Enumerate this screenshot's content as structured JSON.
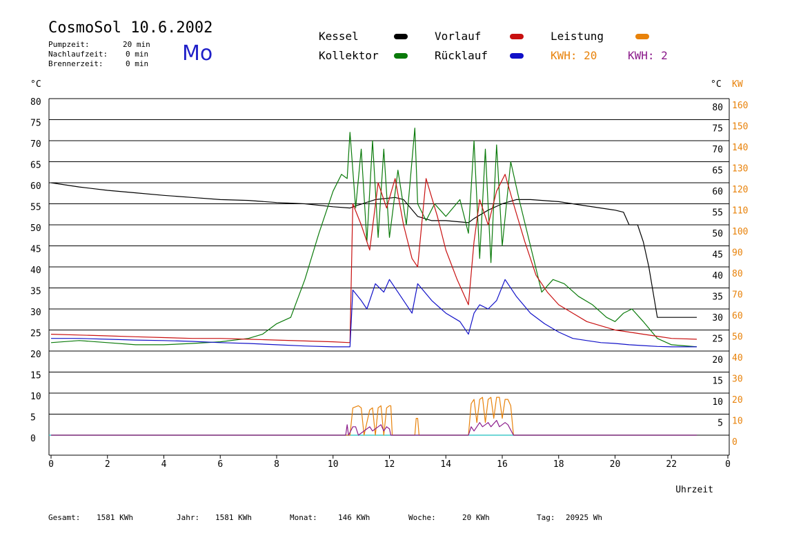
{
  "header": {
    "title": "CosmoSol 10.6.2002",
    "day": "Mo",
    "params": [
      {
        "label": "Pumpzeit:",
        "value": "20 min"
      },
      {
        "label": "Nachlaufzeit:",
        "value": "0 min"
      },
      {
        "label": "Brennerzeit:",
        "value": "0 min"
      }
    ]
  },
  "legend": {
    "kessel": "Kessel",
    "vorlauf": "Vorlauf",
    "leistung": "Leistung",
    "kollektor": "Kollektor",
    "ruecklauf": "Rücklauf",
    "kwh1": "KWH: 20",
    "kwh2": "KWH: 2"
  },
  "colors": {
    "kessel": "#000000",
    "vorlauf": "#c81010",
    "leistung": "#e8820a",
    "kollektor": "#0a7a0a",
    "ruecklauf": "#1010c8",
    "kwh1": "#e8820a",
    "kwh2": "#8a1a8a",
    "baseline": "#40c8c8"
  },
  "footer": {
    "gesamt_label": "Gesamt:",
    "gesamt_value": "1581 KWh",
    "jahr_label": "Jahr:",
    "jahr_value": "1581 KWh",
    "monat_label": "Monat:",
    "monat_value": "146 KWh",
    "woche_label": "Woche:",
    "woche_value": "20 KWh",
    "tag_label": "Tag:",
    "tag_value": "20925 Wh"
  },
  "chart_data": {
    "type": "line",
    "title": "CosmoSol 10.6.2002",
    "xlabel": "Uhrzeit",
    "ylabel_left": "°C",
    "ylabel_right": "°C",
    "ylabel_right2": "KW",
    "xlim": [
      0,
      24
    ],
    "ylim": [
      0,
      80
    ],
    "ylim_kw": [
      0,
      160
    ],
    "x_ticks": [
      "0",
      "2",
      "4",
      "6",
      "8",
      "10",
      "12",
      "14",
      "16",
      "18",
      "20",
      "22",
      "0"
    ],
    "y_ticks_left": [
      "80",
      "75",
      "70",
      "65",
      "60",
      "55",
      "50",
      "45",
      "40",
      "35",
      "30",
      "25",
      "20",
      "15",
      "10",
      "5",
      "0"
    ],
    "y_ticks_right": [
      "80",
      "75",
      "70",
      "65",
      "60",
      "55",
      "50",
      "45",
      "40",
      "35",
      "30",
      "25",
      "20",
      "15",
      "10",
      "5"
    ],
    "y_ticks_kw": [
      "160",
      "150",
      "140",
      "130",
      "120",
      "110",
      "100",
      "90",
      "80",
      "70",
      "60",
      "50",
      "40",
      "30",
      "20",
      "10",
      "0"
    ],
    "grid": true,
    "series": [
      {
        "name": "Kessel",
        "key": "kessel",
        "x": [
          0,
          1,
          2,
          3,
          4,
          5,
          6,
          7,
          8,
          9,
          10,
          10.6,
          10.8,
          11.5,
          12.2,
          12.5,
          13,
          13.5,
          14,
          14.8,
          15,
          15.5,
          16,
          16.5,
          17,
          18,
          19,
          20,
          20.3,
          20.5,
          20.8,
          21,
          21.2,
          21.5,
          22,
          22.9
        ],
        "y": [
          60,
          59,
          58.2,
          57.6,
          57,
          56.5,
          56,
          55.8,
          55.3,
          55,
          54.3,
          54,
          54.5,
          56,
          56.5,
          56,
          52,
          51,
          51,
          50.5,
          51.5,
          53.5,
          55,
          56,
          56,
          55.5,
          54.5,
          53.5,
          53,
          50,
          50,
          46,
          40,
          28,
          28,
          28
        ]
      },
      {
        "name": "Kollektor",
        "key": "kollektor",
        "x": [
          0,
          1,
          2,
          3,
          4,
          5,
          6,
          7,
          7.5,
          8,
          8.5,
          9,
          9.5,
          10,
          10.3,
          10.5,
          10.6,
          10.8,
          11,
          11.2,
          11.4,
          11.6,
          11.8,
          12,
          12.3,
          12.6,
          12.9,
          13,
          13.3,
          13.6,
          14,
          14.5,
          14.8,
          15,
          15.2,
          15.4,
          15.6,
          15.8,
          16,
          16.3,
          16.6,
          17,
          17.4,
          17.8,
          18.2,
          18.7,
          19.2,
          19.7,
          20,
          20.3,
          20.6,
          21,
          21.5,
          22,
          22.9
        ],
        "y": [
          22,
          22.5,
          22,
          21.5,
          21.5,
          21.8,
          22.2,
          23,
          24,
          26.5,
          28,
          37,
          48,
          58,
          62,
          61,
          72,
          54,
          68,
          46,
          70,
          47,
          68,
          47,
          63,
          50,
          73,
          55,
          51,
          55,
          52,
          56,
          48,
          70,
          42,
          68,
          41,
          69,
          45,
          65,
          56,
          45,
          34,
          37,
          36,
          33,
          31,
          28,
          27,
          29,
          30,
          27,
          23,
          21.5,
          21
        ]
      },
      {
        "name": "Vorlauf",
        "key": "vorlauf",
        "x": [
          0,
          1,
          2,
          3,
          4,
          5,
          6,
          7,
          8,
          9,
          10,
          10.6,
          10.7,
          11,
          11.3,
          11.6,
          11.9,
          12.2,
          12.5,
          12.8,
          13,
          13.3,
          13.7,
          14,
          14.4,
          14.8,
          15,
          15.2,
          15.5,
          15.8,
          16.1,
          16.4,
          16.8,
          17.2,
          17.6,
          18,
          18.5,
          19,
          19.5,
          20,
          20.5,
          21,
          21.5,
          22,
          22.9
        ],
        "y": [
          24,
          23.8,
          23.6,
          23.4,
          23.2,
          23,
          23,
          22.8,
          22.6,
          22.4,
          22.2,
          22,
          55,
          50,
          44,
          60,
          54,
          61,
          50,
          42,
          40,
          61,
          52,
          44,
          37,
          31,
          46,
          56,
          50,
          58,
          62,
          55,
          46,
          38,
          34,
          31,
          29,
          27,
          26,
          25,
          24.5,
          24,
          23.5,
          23,
          22.8
        ]
      },
      {
        "name": "Rücklauf",
        "key": "ruecklauf",
        "x": [
          0,
          1,
          2,
          3,
          4,
          5,
          6,
          7,
          8,
          9,
          10,
          10.6,
          10.7,
          11,
          11.2,
          11.5,
          11.8,
          12,
          12.4,
          12.8,
          13,
          13.5,
          14,
          14.5,
          14.8,
          15,
          15.2,
          15.5,
          15.8,
          16.1,
          16.5,
          17,
          17.5,
          18,
          18.5,
          19,
          19.5,
          20,
          20.5,
          21,
          21.5,
          22,
          22.9
        ],
        "y": [
          23,
          23,
          22.8,
          22.6,
          22.5,
          22.3,
          22,
          21.8,
          21.5,
          21.2,
          21,
          21,
          34.5,
          32,
          30,
          36,
          34,
          37,
          33,
          29,
          36,
          32,
          29,
          27,
          24,
          29,
          31,
          30,
          32,
          37,
          33,
          29,
          26.5,
          24.5,
          23,
          22.5,
          22,
          21.8,
          21.5,
          21.3,
          21.1,
          21,
          21
        ]
      },
      {
        "name": "Leistung",
        "key": "leistung",
        "x": [
          0,
          10.6,
          10.7,
          10.9,
          11,
          11.1,
          11.3,
          11.4,
          11.5,
          11.6,
          11.7,
          11.8,
          11.9,
          12,
          12.05,
          12.1,
          12.9,
          12.95,
          13,
          13.05,
          14.8,
          14.9,
          15,
          15.1,
          15.2,
          15.3,
          15.4,
          15.5,
          15.6,
          15.7,
          15.8,
          15.9,
          16,
          16.1,
          16.2,
          16.3,
          16.4,
          22.9
        ],
        "y": [
          0,
          0,
          13,
          14,
          13,
          0,
          12,
          13,
          0,
          13,
          14,
          0,
          13,
          14,
          14,
          0,
          0,
          8,
          8,
          0,
          0,
          15,
          17,
          6,
          17,
          18,
          6,
          17,
          18,
          8,
          18,
          18,
          8,
          17,
          17,
          14,
          0,
          0
        ]
      },
      {
        "name": "KWH",
        "key": "kwh2",
        "x": [
          0,
          10.45,
          10.5,
          10.55,
          10.7,
          10.8,
          10.9,
          11.2,
          11.3,
          11.4,
          11.6,
          11.7,
          11.8,
          11.9,
          12.0,
          12.05,
          14.8,
          14.9,
          15.0,
          15.2,
          15.3,
          15.5,
          15.6,
          15.8,
          15.9,
          16.1,
          16.2,
          16.4,
          22.9
        ],
        "y": [
          0,
          0,
          2.5,
          0,
          2,
          2,
          0,
          1.5,
          2,
          1,
          2,
          2.5,
          1,
          2,
          1.5,
          0,
          0,
          2,
          1,
          3,
          2,
          3,
          2,
          3.5,
          2,
          3,
          2.5,
          0,
          0
        ]
      }
    ],
    "markers": [
      {
        "name": "Baseline",
        "key": "baseline",
        "y": 0
      }
    ]
  }
}
